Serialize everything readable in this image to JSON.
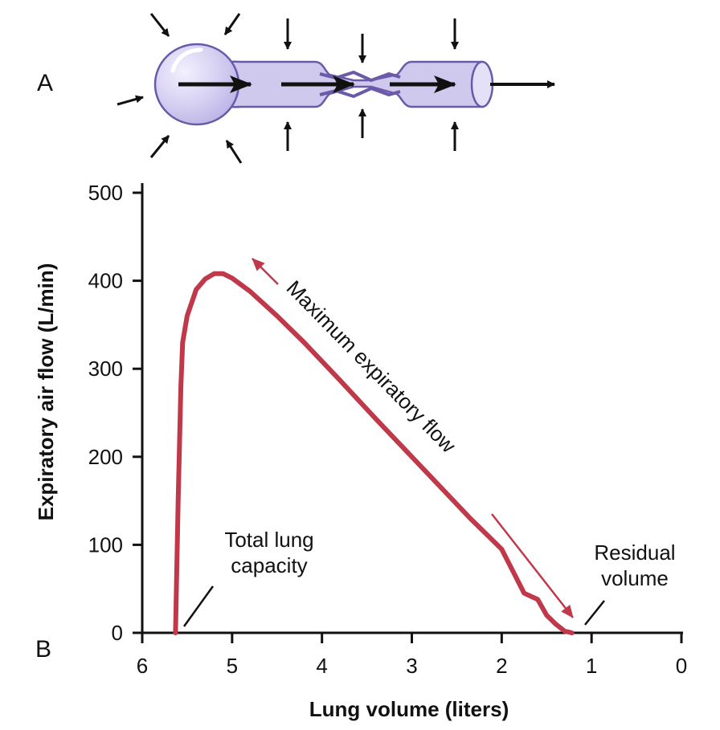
{
  "panels": {
    "a": "A",
    "b": "B"
  },
  "colors": {
    "curve": "#c0394b",
    "airway_fill": "#cfc9ee",
    "airway_stroke": "#6a5aa8",
    "ink": "#111111"
  },
  "chart_data": {
    "type": "line",
    "title": "",
    "xlabel": "Lung volume (liters)",
    "ylabel": "Expiratory air flow (L/min)",
    "xlim": [
      6,
      0
    ],
    "ylim": [
      0,
      500
    ],
    "x_ticks": [
      6,
      5,
      4,
      3,
      2,
      1,
      0
    ],
    "y_ticks": [
      0,
      100,
      200,
      300,
      400,
      500
    ],
    "grid": false,
    "series": [
      {
        "name": "Maximum expiratory flow",
        "x": [
          5.63,
          5.6,
          5.57,
          5.55,
          5.5,
          5.4,
          5.3,
          5.2,
          5.1,
          5.0,
          4.8,
          4.5,
          4.2,
          3.8,
          3.4,
          3.0,
          2.6,
          2.35,
          2.15,
          2.0,
          1.9,
          1.75,
          1.6,
          1.5,
          1.4,
          1.3,
          1.22
        ],
        "y": [
          0,
          150,
          280,
          330,
          360,
          390,
          402,
          408,
          408,
          403,
          388,
          360,
          330,
          287,
          243,
          200,
          157,
          130,
          110,
          95,
          75,
          45,
          38,
          20,
          10,
          2,
          0
        ]
      }
    ],
    "annotations": {
      "total_lung_capacity": "Total lung\ncapacity",
      "residual_volume": "Residual\nvolume",
      "flow_arrow": "Maximum expiratory flow"
    }
  }
}
